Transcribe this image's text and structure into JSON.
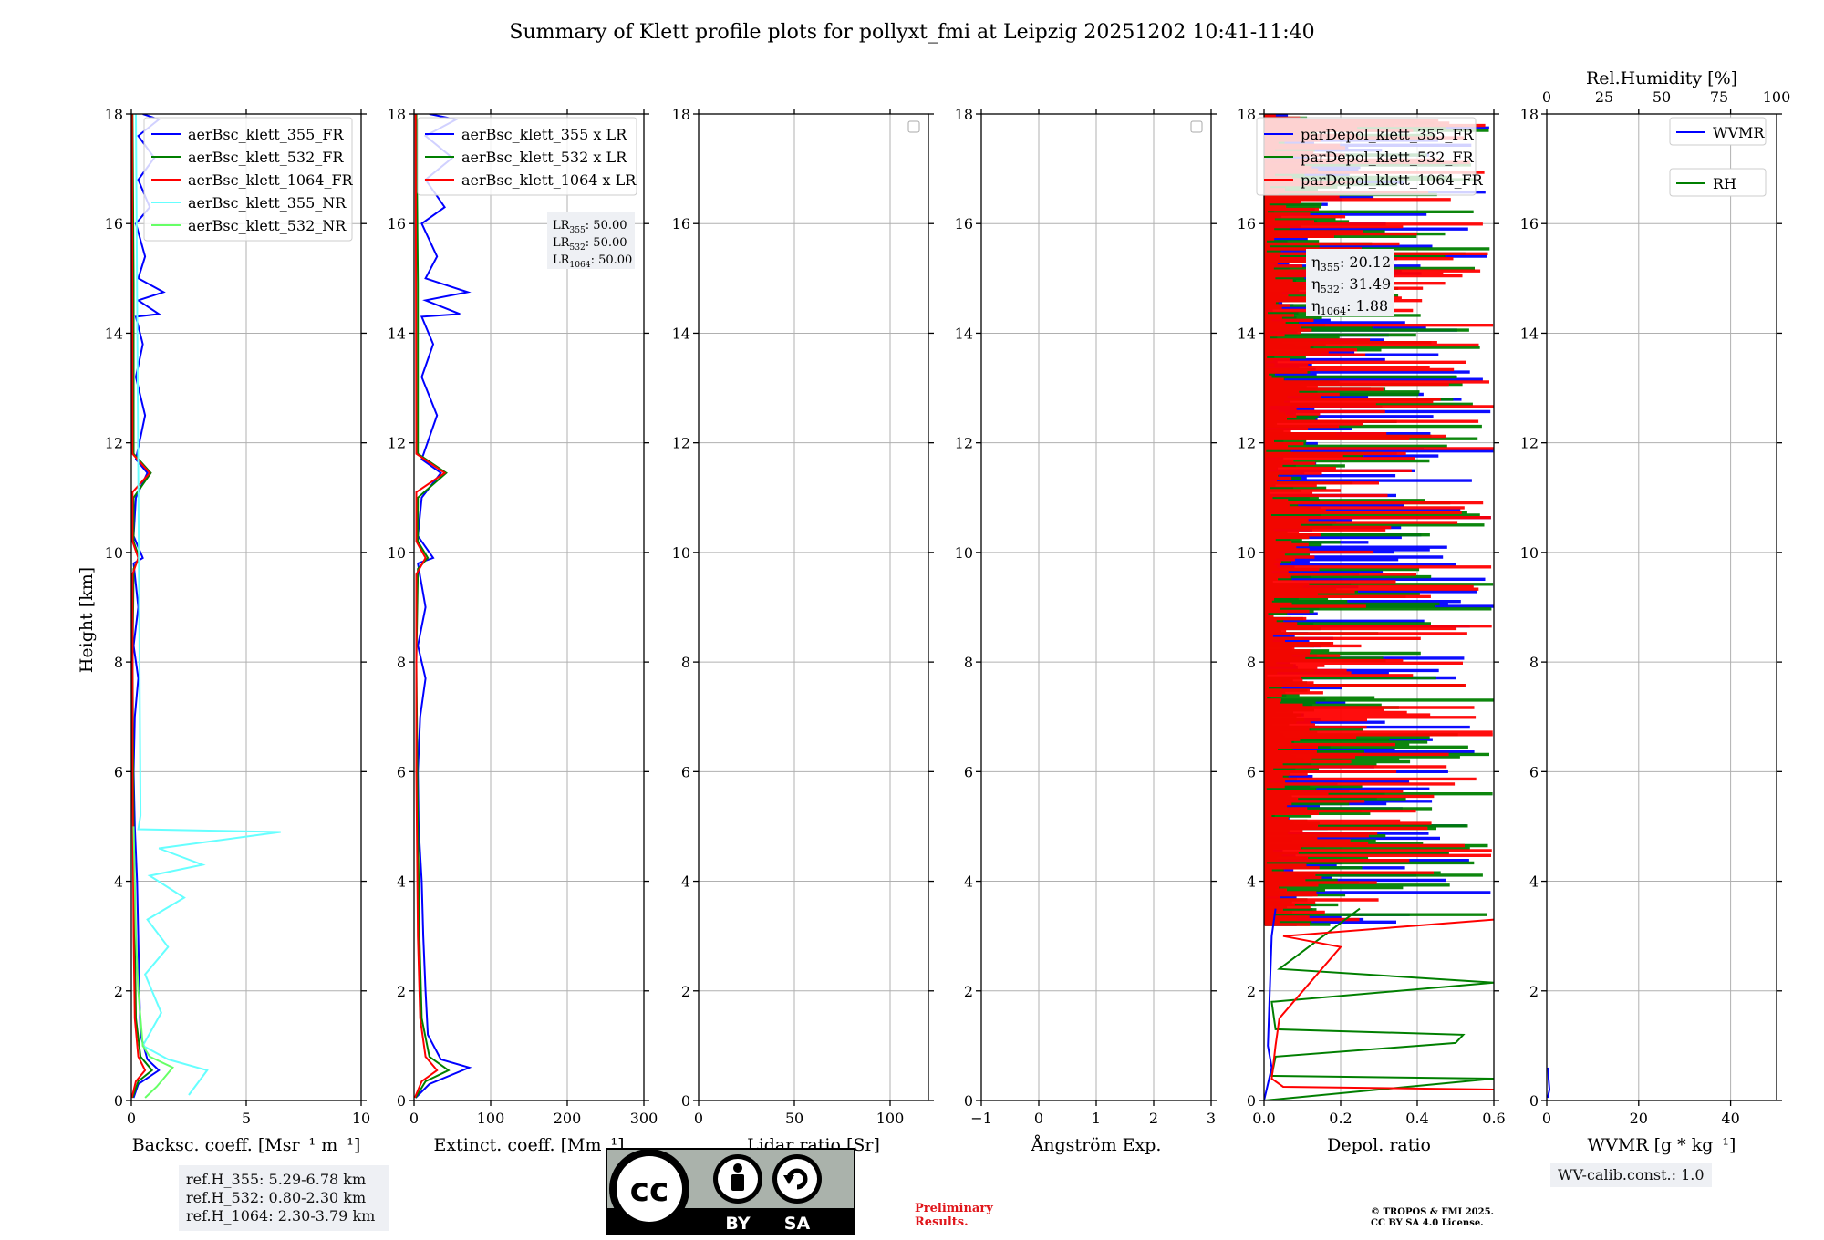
{
  "title": "Summary of Klett profile plots for pollyxt_fmi at Leipzig 20251202 10:41-11:40",
  "y_axis_label": "Height [km]",
  "colors": {
    "c355": "#0000ff",
    "c532": "#007f00",
    "c1064": "#ff0000",
    "c355nr": "#66ffff",
    "c532nr": "#66ff66",
    "grid": "#b0b0b0"
  },
  "chart_data": [
    {
      "type": "line",
      "name": "backscatter",
      "xlabel": "Backsc. coeff. [Msr⁻¹ m⁻¹]",
      "xlim": [
        0,
        10
      ],
      "xticks": [
        "0",
        "5",
        "10"
      ],
      "ylim": [
        0,
        18
      ],
      "yticks": [
        "0",
        "2",
        "4",
        "6",
        "8",
        "10",
        "12",
        "14",
        "16",
        "18"
      ],
      "ylabel": "Height [km]",
      "legend": [
        "aerBsc_klett_355_FR",
        "aerBsc_klett_532_FR",
        "aerBsc_klett_1064_FR",
        "aerBsc_klett_355_NR",
        "aerBsc_klett_532_NR"
      ],
      "legend_colors": [
        "#0000ff",
        "#007f00",
        "#ff0000",
        "#66ffff",
        "#66ff66"
      ],
      "series": [
        {
          "name": "aerBsc_klett_355_FR",
          "color": "#0000ff",
          "points": [
            [
              0.1,
              0.05
            ],
            [
              0.3,
              0.3
            ],
            [
              1.2,
              0.55
            ],
            [
              0.7,
              0.75
            ],
            [
              0.4,
              1.2
            ],
            [
              0.35,
              2
            ],
            [
              0.3,
              3
            ],
            [
              0.25,
              4
            ],
            [
              0.15,
              5
            ],
            [
              0.1,
              6
            ],
            [
              0.15,
              7
            ],
            [
              0.3,
              7.7
            ],
            [
              0.1,
              8.3
            ],
            [
              0.3,
              9
            ],
            [
              0.1,
              9.8
            ],
            [
              0.5,
              9.9
            ],
            [
              0.1,
              10.3
            ],
            [
              0.2,
              11
            ],
            [
              0.7,
              11.45
            ],
            [
              0.2,
              11.7
            ],
            [
              0.6,
              12.5
            ],
            [
              0.2,
              13.2
            ],
            [
              0.5,
              13.8
            ],
            [
              0.2,
              14.3
            ],
            [
              1.2,
              14.35
            ],
            [
              0.3,
              14.6
            ],
            [
              1.4,
              14.75
            ],
            [
              0.3,
              15
            ],
            [
              0.6,
              15.4
            ],
            [
              0.2,
              16
            ],
            [
              0.8,
              16.3
            ],
            [
              0.3,
              16.8
            ],
            [
              1.0,
              17.2
            ],
            [
              0.3,
              17.6
            ],
            [
              1.2,
              17.9
            ],
            [
              0.5,
              18
            ]
          ]
        },
        {
          "name": "aerBsc_klett_532_FR",
          "color": "#007f00",
          "points": [
            [
              0.05,
              0.05
            ],
            [
              0.3,
              0.35
            ],
            [
              0.9,
              0.55
            ],
            [
              0.4,
              0.8
            ],
            [
              0.2,
              1.5
            ],
            [
              0.15,
              3
            ],
            [
              0.1,
              5
            ],
            [
              0.05,
              8
            ],
            [
              0.1,
              9.7
            ],
            [
              0.35,
              9.9
            ],
            [
              0.1,
              10.2
            ],
            [
              0.1,
              11
            ],
            [
              0.85,
              11.45
            ],
            [
              0.1,
              11.8
            ],
            [
              0.1,
              14.9
            ],
            [
              0.05,
              18
            ]
          ]
        },
        {
          "name": "aerBsc_klett_1064_FR",
          "color": "#ff0000",
          "points": [
            [
              0.02,
              0.05
            ],
            [
              0.2,
              0.35
            ],
            [
              0.6,
              0.55
            ],
            [
              0.3,
              0.8
            ],
            [
              0.15,
              1.5
            ],
            [
              0.1,
              3
            ],
            [
              0.05,
              6
            ],
            [
              0.05,
              9.6
            ],
            [
              0.3,
              9.9
            ],
            [
              0.05,
              10.2
            ],
            [
              0.05,
              11.1
            ],
            [
              0.8,
              11.45
            ],
            [
              0.05,
              11.8
            ],
            [
              0.03,
              18
            ]
          ]
        },
        {
          "name": "aerBsc_klett_355_NR",
          "color": "#66ffff",
          "points": [
            [
              2.5,
              0.1
            ],
            [
              3.3,
              0.55
            ],
            [
              1.6,
              0.75
            ],
            [
              0.5,
              1.0
            ],
            [
              1.3,
              1.6
            ],
            [
              0.6,
              2.3
            ],
            [
              1.6,
              2.8
            ],
            [
              0.7,
              3.3
            ],
            [
              2.3,
              3.7
            ],
            [
              0.8,
              4.1
            ],
            [
              3.1,
              4.3
            ],
            [
              1.2,
              4.6
            ],
            [
              6.5,
              4.9
            ],
            [
              0.3,
              4.95
            ],
            [
              0.4,
              5.2
            ],
            [
              0.2,
              18
            ]
          ]
        },
        {
          "name": "aerBsc_klett_532_NR",
          "color": "#66ff66",
          "points": [
            [
              0.6,
              0.05
            ],
            [
              1.1,
              0.25
            ],
            [
              1.4,
              0.4
            ],
            [
              1.8,
              0.6
            ],
            [
              0.8,
              0.8
            ],
            [
              0.5,
              1.0
            ],
            [
              0.3,
              2
            ],
            [
              0.2,
              3
            ],
            [
              0.1,
              5
            ]
          ]
        }
      ]
    },
    {
      "type": "line",
      "name": "extinction",
      "xlabel": "Extinct. coeff. [Mm⁻¹]",
      "xlim": [
        0,
        300
      ],
      "xticks": [
        "0",
        "100",
        "200",
        "300"
      ],
      "ylim": [
        0,
        18
      ],
      "yticks": [
        "0",
        "2",
        "4",
        "6",
        "8",
        "10",
        "12",
        "14",
        "16",
        "18"
      ],
      "legend": [
        "aerBsc_klett_355 x LR",
        "aerBsc_klett_532 x LR",
        "aerBsc_klett_1064 x LR"
      ],
      "legend_colors": [
        "#0000ff",
        "#007f00",
        "#ff0000"
      ],
      "annotation": {
        "label": "LR",
        "subs": [
          "355",
          "532",
          "1064"
        ],
        "values": [
          "50.00",
          "50.00",
          "50.00"
        ]
      },
      "series": [
        {
          "name": "aerBsc_klett_355 x LR",
          "color": "#0000ff",
          "points": [
            [
              2,
              0.05
            ],
            [
              20,
              0.3
            ],
            [
              72,
              0.6
            ],
            [
              35,
              0.75
            ],
            [
              18,
              1.2
            ],
            [
              15,
              2
            ],
            [
              12,
              3
            ],
            [
              10,
              4
            ],
            [
              6,
              5
            ],
            [
              5,
              6
            ],
            [
              8,
              7
            ],
            [
              15,
              7.7
            ],
            [
              5,
              8.3
            ],
            [
              15,
              9
            ],
            [
              5,
              9.8
            ],
            [
              25,
              9.9
            ],
            [
              5,
              10.3
            ],
            [
              10,
              11
            ],
            [
              35,
              11.45
            ],
            [
              10,
              11.7
            ],
            [
              30,
              12.5
            ],
            [
              10,
              13.2
            ],
            [
              25,
              13.8
            ],
            [
              10,
              14.3
            ],
            [
              60,
              14.35
            ],
            [
              15,
              14.6
            ],
            [
              70,
              14.75
            ],
            [
              15,
              15
            ],
            [
              30,
              15.4
            ],
            [
              10,
              16
            ],
            [
              40,
              16.3
            ],
            [
              15,
              16.8
            ],
            [
              50,
              17.2
            ],
            [
              15,
              17.6
            ],
            [
              55,
              17.9
            ],
            [
              20,
              18
            ]
          ]
        },
        {
          "name": "aerBsc_klett_532 x LR",
          "color": "#007f00",
          "points": [
            [
              2,
              0.05
            ],
            [
              15,
              0.35
            ],
            [
              45,
              0.55
            ],
            [
              20,
              0.8
            ],
            [
              10,
              1.5
            ],
            [
              7,
              3
            ],
            [
              5,
              5
            ],
            [
              3,
              8
            ],
            [
              5,
              9.7
            ],
            [
              18,
              9.9
            ],
            [
              5,
              10.2
            ],
            [
              5,
              11
            ],
            [
              42,
              11.45
            ],
            [
              5,
              11.8
            ],
            [
              5,
              14.9
            ],
            [
              3,
              18
            ]
          ]
        },
        {
          "name": "aerBsc_klett_1064 x LR",
          "color": "#ff0000",
          "points": [
            [
              1,
              0.05
            ],
            [
              10,
              0.35
            ],
            [
              30,
              0.55
            ],
            [
              15,
              0.8
            ],
            [
              8,
              1.5
            ],
            [
              5,
              3
            ],
            [
              3,
              6
            ],
            [
              3,
              9.6
            ],
            [
              15,
              9.9
            ],
            [
              3,
              10.2
            ],
            [
              3,
              11.1
            ],
            [
              40,
              11.45
            ],
            [
              3,
              11.8
            ],
            [
              2,
              18
            ]
          ]
        }
      ]
    },
    {
      "type": "line",
      "name": "lidar_ratio",
      "xlabel": "Lidar ratio [Sr]",
      "xlim": [
        0,
        120
      ],
      "xticks": [
        "0",
        "50",
        "100"
      ],
      "xtick_values": [
        0,
        50,
        100
      ],
      "ylim": [
        0,
        18
      ],
      "yticks": [
        "0",
        "2",
        "4",
        "6",
        "8",
        "10",
        "12",
        "14",
        "16",
        "18"
      ],
      "series": []
    },
    {
      "type": "line",
      "name": "angstrom",
      "xlabel": "Ångström Exp.",
      "xlim": [
        -1,
        3
      ],
      "xticks": [
        "−1",
        "0",
        "1",
        "2",
        "3"
      ],
      "ylim": [
        0,
        18
      ],
      "yticks": [
        "0",
        "2",
        "4",
        "6",
        "8",
        "10",
        "12",
        "14",
        "16",
        "18"
      ],
      "series": []
    },
    {
      "type": "line",
      "name": "depolarization",
      "xlabel": "Depol. ratio",
      "xlim": [
        0,
        0.6
      ],
      "xticks": [
        "0.0",
        "0.2",
        "0.4",
        "0.6"
      ],
      "ylim": [
        0,
        18
      ],
      "yticks": [
        "0",
        "2",
        "4",
        "6",
        "8",
        "10",
        "12",
        "14",
        "16",
        "18"
      ],
      "legend": [
        "parDepol_klett_355_FR",
        "parDepol_klett_532_FR",
        "parDepol_klett_1064_FR"
      ],
      "legend_colors": [
        "#0000ff",
        "#007f00",
        "#ff0000"
      ],
      "annotation": {
        "label": "η",
        "subs": [
          "355",
          "532",
          "1064"
        ],
        "values": [
          "20.12",
          "31.49",
          "1.88"
        ]
      },
      "noise_above_km": 3.2,
      "series": [
        {
          "name": "parDepol_klett_355_FR",
          "color": "#0000ff",
          "points": [
            [
              0.0,
              0.0
            ],
            [
              0.01,
              0.3
            ],
            [
              0.02,
              0.6
            ],
            [
              0.01,
              1.0
            ],
            [
              0.015,
              2.0
            ],
            [
              0.02,
              3.0
            ],
            [
              0.03,
              3.5
            ]
          ]
        },
        {
          "name": "parDepol_klett_532_FR",
          "color": "#007f00",
          "points": [
            [
              0.0,
              0.0
            ],
            [
              0.6,
              0.4
            ],
            [
              0.02,
              0.45
            ],
            [
              0.03,
              0.8
            ],
            [
              0.5,
              1.05
            ],
            [
              0.52,
              1.2
            ],
            [
              0.03,
              1.3
            ],
            [
              0.02,
              1.8
            ],
            [
              0.6,
              2.15
            ],
            [
              0.04,
              2.4
            ],
            [
              0.25,
              3.5
            ]
          ]
        },
        {
          "name": "parDepol_klett_1064_FR",
          "color": "#ff0000",
          "points": [
            [
              0.6,
              0.2
            ],
            [
              0.05,
              0.25
            ],
            [
              0.02,
              0.4
            ],
            [
              0.03,
              1.0
            ],
            [
              0.04,
              1.5
            ],
            [
              0.2,
              2.8
            ],
            [
              0.05,
              3.0
            ],
            [
              0.6,
              3.3
            ]
          ]
        }
      ]
    },
    {
      "type": "line",
      "name": "wvmr",
      "xlabel": "WVMR [g * kg⁻¹]",
      "xlim": [
        0,
        50
      ],
      "xticks": [
        "0",
        "20",
        "40"
      ],
      "xtick_values": [
        0,
        20,
        40
      ],
      "ylim": [
        0,
        18
      ],
      "yticks": [
        "0",
        "2",
        "4",
        "6",
        "8",
        "10",
        "12",
        "14",
        "16",
        "18"
      ],
      "top_xlabel": "Rel.Humidity [%]",
      "top_xlim": [
        0,
        100
      ],
      "top_xticks": [
        "0",
        "25",
        "50",
        "75",
        "100"
      ],
      "legend": [
        "WVMR",
        "RH"
      ],
      "legend_colors": [
        "#0000ff",
        "#007f00"
      ],
      "series": [
        {
          "name": "WVMR",
          "color": "#0000ff",
          "points": [
            [
              0.2,
              0.05
            ],
            [
              0.6,
              0.2
            ],
            [
              0.4,
              0.4
            ],
            [
              0.3,
              0.6
            ]
          ]
        }
      ]
    }
  ],
  "ref_heights": [
    "ref.H_355: 5.29-6.78 km",
    "ref.H_532: 0.80-2.30 km",
    "ref.H_1064: 2.30-3.79 km"
  ],
  "wv_calib": "WV-calib.const.: 1.0",
  "license_badge": {
    "left": "cc",
    "by": "BY",
    "sa": "SA"
  },
  "preliminary": [
    "Preliminary",
    "Results."
  ],
  "copyright": [
    "© TROPOS & FMI 2025.",
    "CC BY SA 4.0 License."
  ]
}
